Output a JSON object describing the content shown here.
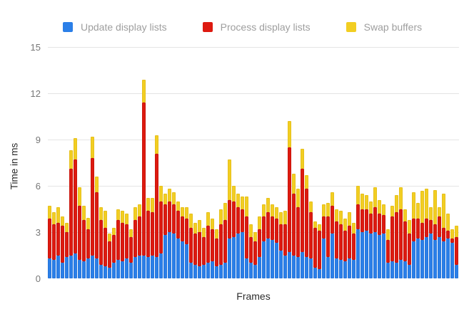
{
  "chart_data": {
    "type": "bar",
    "stacked": true,
    "title": "",
    "xlabel": "Frames",
    "ylabel": "Time in ms",
    "ylim": [
      0,
      15
    ],
    "yticks": [
      0,
      3,
      6,
      9,
      12,
      15
    ],
    "grid": "horizontal",
    "legend_position": "top",
    "bar_count": 96,
    "series": [
      {
        "name": "Update display lists",
        "color": "#2b7fe8",
        "edge_color": "#1e63c0",
        "values": [
          1.3,
          1.2,
          1.5,
          1.0,
          1.4,
          1.5,
          1.6,
          1.2,
          1.1,
          1.3,
          1.5,
          1.3,
          0.9,
          0.8,
          0.7,
          1.0,
          1.2,
          1.1,
          1.3,
          1.0,
          1.4,
          1.5,
          1.5,
          1.4,
          1.5,
          1.4,
          1.6,
          2.8,
          3.0,
          2.9,
          2.6,
          2.4,
          2.2,
          1.0,
          0.9,
          0.8,
          0.9,
          1.0,
          1.1,
          0.8,
          0.9,
          1.0,
          2.6,
          2.7,
          2.9,
          3.0,
          1.3,
          1.0,
          0.9,
          1.4,
          2.4,
          2.6,
          2.5,
          2.3,
          1.8,
          1.5,
          1.7,
          1.5,
          1.4,
          1.7,
          1.4,
          1.3,
          0.7,
          0.6,
          2.6,
          1.4,
          2.9,
          1.3,
          1.2,
          1.1,
          1.3,
          1.2,
          3.2,
          3.0,
          3.1,
          2.9,
          3.0,
          2.8,
          2.9,
          1.0,
          1.1,
          1.0,
          1.2,
          1.1,
          0.9,
          2.4,
          2.6,
          2.5,
          2.7,
          2.9,
          2.5,
          2.7,
          2.4,
          2.6,
          2.3,
          0.9
        ]
      },
      {
        "name": "Process display lists",
        "color": "#dd1a10",
        "edge_color": "#a30d07",
        "values": [
          2.6,
          2.3,
          2.1,
          2.4,
          1.6,
          5.6,
          6.1,
          3.5,
          2.7,
          1.9,
          6.3,
          4.3,
          2.9,
          2.5,
          1.7,
          1.8,
          2.6,
          2.5,
          2.2,
          1.7,
          2.4,
          2.5,
          9.9,
          3.0,
          2.8,
          6.7,
          3.4,
          2.0,
          2.0,
          1.9,
          1.8,
          1.6,
          1.7,
          2.3,
          2.0,
          2.2,
          1.8,
          2.4,
          2.1,
          1.8,
          2.6,
          2.8,
          2.5,
          2.3,
          1.7,
          1.5,
          2.7,
          1.7,
          1.5,
          1.8,
          1.6,
          1.7,
          1.5,
          1.6,
          1.7,
          2.0,
          6.8,
          4.0,
          3.2,
          5.4,
          4.4,
          3.0,
          2.6,
          2.5,
          1.4,
          2.6,
          1.8,
          2.4,
          2.3,
          2.0,
          2.1,
          1.7,
          1.6,
          1.5,
          1.4,
          1.3,
          1.6,
          1.4,
          1.2,
          1.5,
          2.9,
          3.3,
          3.3,
          2.6,
          2.0,
          1.5,
          1.3,
          1.1,
          1.2,
          0.9,
          1.0,
          1.3,
          0.9,
          0.5,
          0.3,
          1.8
        ]
      },
      {
        "name": "Swap buffers",
        "color": "#f2ce22",
        "edge_color": "#cfa613",
        "values": [
          0.8,
          0.8,
          1.0,
          0.6,
          0.6,
          1.2,
          1.4,
          1.2,
          0.9,
          0.7,
          1.4,
          1.0,
          0.8,
          1.1,
          0.5,
          0.5,
          0.7,
          0.8,
          0.7,
          0.5,
          0.8,
          0.8,
          1.5,
          0.8,
          0.9,
          1.2,
          1.0,
          0.7,
          0.8,
          0.8,
          0.6,
          0.6,
          0.7,
          0.9,
          0.7,
          0.8,
          0.6,
          0.9,
          0.7,
          0.6,
          1.0,
          1.1,
          2.6,
          1.0,
          0.9,
          0.8,
          1.3,
          0.8,
          0.6,
          0.8,
          0.8,
          0.9,
          0.8,
          0.7,
          0.8,
          0.9,
          1.7,
          1.3,
          1.2,
          1.3,
          0.9,
          0.7,
          0.4,
          0.4,
          0.8,
          0.9,
          0.9,
          0.8,
          0.9,
          0.8,
          0.9,
          0.7,
          1.2,
          1.0,
          0.9,
          0.8,
          1.3,
          0.9,
          0.7,
          0.7,
          0.7,
          1.1,
          1.4,
          0.8,
          0.9,
          1.7,
          1.0,
          2.1,
          1.9,
          0.8,
          2.2,
          0.6,
          2.2,
          1.1,
          0.6,
          0.7
        ]
      }
    ]
  },
  "colors": {
    "background": "#ffffff",
    "gridline": "#e4e4e4",
    "tick_text": "#777777",
    "axis_title_text": "#2d2d2d",
    "legend_text": "#9e9e9e"
  }
}
